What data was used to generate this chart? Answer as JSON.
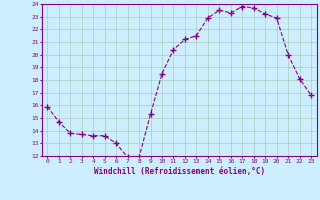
{
  "x": [
    0,
    1,
    2,
    3,
    4,
    5,
    6,
    7,
    8,
    9,
    10,
    11,
    12,
    13,
    14,
    15,
    16,
    17,
    18,
    19,
    20,
    21,
    22,
    23
  ],
  "y": [
    15.9,
    14.7,
    13.8,
    13.7,
    13.6,
    13.6,
    13.0,
    11.9,
    11.9,
    15.3,
    18.5,
    20.4,
    21.2,
    21.5,
    22.9,
    23.5,
    23.3,
    23.8,
    23.7,
    23.2,
    22.9,
    20.0,
    18.1,
    16.8
  ],
  "xlim": [
    -0.5,
    23.5
  ],
  "ylim": [
    12,
    24
  ],
  "yticks": [
    12,
    13,
    14,
    15,
    16,
    17,
    18,
    19,
    20,
    21,
    22,
    23,
    24
  ],
  "xticks": [
    0,
    1,
    2,
    3,
    4,
    5,
    6,
    7,
    8,
    9,
    10,
    11,
    12,
    13,
    14,
    15,
    16,
    17,
    18,
    19,
    20,
    21,
    22,
    23
  ],
  "xlabel": "Windchill (Refroidissement éolien,°C)",
  "line_color": "#880088",
  "marker": "+",
  "bg_color": "#cceeff",
  "grid_color": "#aaccbb",
  "label_color": "#880088",
  "tick_color": "#880088",
  "spine_color": "#880088"
}
